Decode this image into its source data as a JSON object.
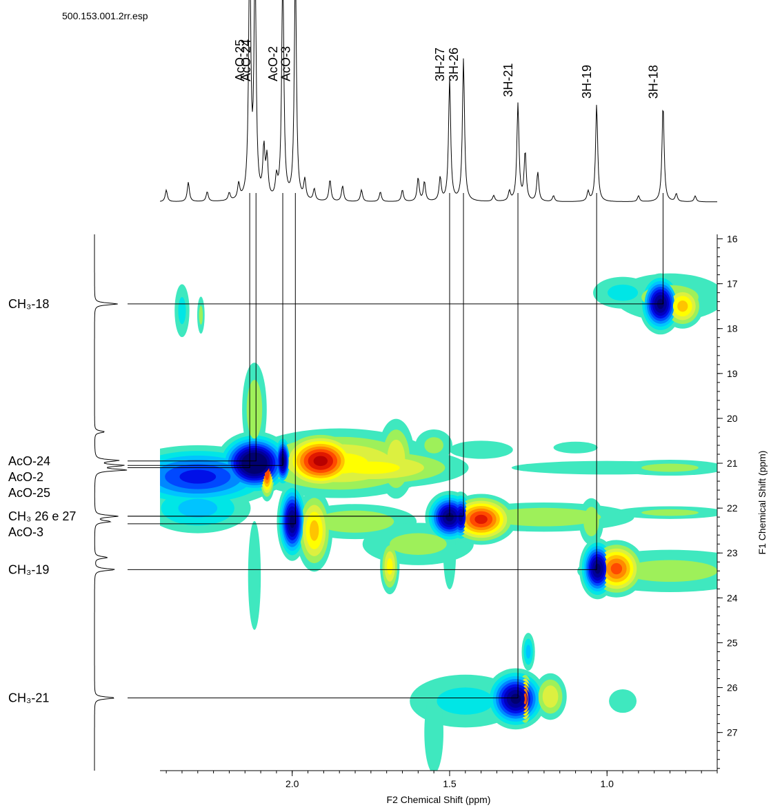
{
  "chart_data": {
    "type": "contour2d",
    "file_label": "500.153.001.2rr.esp",
    "x_label": "F2 Chemical Shift (ppm)",
    "y_label": "F1 Chemical Shift (ppm)",
    "xlim": [
      2.42,
      0.65
    ],
    "xticks": [
      {
        "value": 2.0,
        "label": "2.0"
      },
      1.5,
      {
        "value": 1.0,
        "label": "1.0"
      }
    ],
    "xminor_step": 0.05,
    "ylim": [
      15.9,
      27.85
    ],
    "yticks": [
      16,
      17,
      18,
      19,
      20,
      21,
      22,
      23,
      24,
      25,
      26,
      27
    ],
    "yminor_step": 0.2,
    "contour_levels": [
      0.15,
      0.25,
      0.35,
      0.45,
      0.55,
      0.65,
      0.75,
      0.85,
      0.95
    ],
    "contour_colors": {
      "positive": [
        "#3fe8bf",
        "#9ef05a",
        "#dcf040",
        "#ffff00",
        "#ffc400",
        "#ff8a00",
        "#ff4a00",
        "#e01800",
        "#b80000"
      ],
      "negative": [
        "#3fe8bf",
        "#00e6e6",
        "#00c4ff",
        "#0088ff",
        "#0048ff",
        "#0010e8",
        "#0000c0",
        "#000098",
        "#000070"
      ]
    },
    "cross_peaks": [
      {
        "f2": 2.3,
        "f1": 21.3,
        "w2": 0.15,
        "w1": 0.4,
        "intensity": -0.7
      },
      {
        "f2": 2.3,
        "f1": 22.0,
        "w2": 0.12,
        "w1": 0.4,
        "intensity": -0.4
      },
      {
        "f2": 2.12,
        "f1": 21.0,
        "w2": 0.06,
        "w1": 0.35,
        "intensity": -1.2
      },
      {
        "f2": 2.12,
        "f1": 19.8,
        "w2": 0.03,
        "w1": 0.8,
        "intensity": 0.35
      },
      {
        "f2": 2.12,
        "f1": 23.5,
        "w2": 0.02,
        "w1": 1.2,
        "intensity": -0.25
      },
      {
        "f2": 2.08,
        "f1": 21.2,
        "w2": 0.015,
        "w1": 0.35,
        "intensity": 0.85
      },
      {
        "f2": 2.03,
        "f1": 20.95,
        "w2": 0.015,
        "w1": 0.3,
        "intensity": -1.0
      },
      {
        "f2": 1.91,
        "f1": 20.95,
        "w2": 0.07,
        "w1": 0.35,
        "intensity": 1.0
      },
      {
        "f2": 1.85,
        "f1": 21.0,
        "w2": 0.2,
        "w1": 0.5,
        "intensity": 0.5
      },
      {
        "f2": 1.75,
        "f1": 21.1,
        "w2": 0.2,
        "w1": 0.3,
        "intensity": 0.5
      },
      {
        "f2": 1.67,
        "f1": 20.9,
        "w2": 0.04,
        "w1": 0.6,
        "intensity": 0.45
      },
      {
        "f2": 1.55,
        "f1": 20.6,
        "w2": 0.05,
        "w1": 0.3,
        "intensity": 0.3
      },
      {
        "f2": 1.4,
        "f1": 20.7,
        "w2": 0.1,
        "w1": 0.2,
        "intensity": -0.25
      },
      {
        "f2": 1.1,
        "f1": 20.65,
        "w2": 0.08,
        "w1": 0.15,
        "intensity": -0.22
      },
      {
        "f2": 1.0,
        "f1": 21.1,
        "w2": 0.3,
        "w1": 0.15,
        "intensity": 0.25
      },
      {
        "f2": 0.8,
        "f1": 21.1,
        "w2": 0.15,
        "w1": 0.15,
        "intensity": 0.3
      },
      {
        "f2": 2.0,
        "f1": 22.3,
        "w2": 0.025,
        "w1": 0.45,
        "intensity": -1.0
      },
      {
        "f2": 1.93,
        "f1": 22.5,
        "w2": 0.035,
        "w1": 0.55,
        "intensity": 0.6
      },
      {
        "f2": 1.8,
        "f1": 22.3,
        "w2": 0.15,
        "w1": 0.3,
        "intensity": 0.35
      },
      {
        "f2": 1.6,
        "f1": 22.8,
        "w2": 0.15,
        "w1": 0.4,
        "intensity": 0.3
      },
      {
        "f2": 1.69,
        "f1": 23.3,
        "w2": 0.02,
        "w1": 0.4,
        "intensity": 0.5
      },
      {
        "f2": 1.5,
        "f1": 22.2,
        "w2": 0.04,
        "w1": 0.3,
        "intensity": -1.0
      },
      {
        "f2": 1.465,
        "f1": 22.2,
        "w2": 0.02,
        "w1": 0.3,
        "intensity": -0.9
      },
      {
        "f2": 1.5,
        "f1": 23.0,
        "w2": 0.02,
        "w1": 0.8,
        "intensity": -0.25
      },
      {
        "f2": 1.4,
        "f1": 22.25,
        "w2": 0.06,
        "w1": 0.3,
        "intensity": 0.9
      },
      {
        "f2": 1.2,
        "f1": 22.2,
        "w2": 0.22,
        "w1": 0.25,
        "intensity": 0.35
      },
      {
        "f2": 1.05,
        "f1": 22.3,
        "w2": 0.03,
        "w1": 0.4,
        "intensity": 0.35
      },
      {
        "f2": 0.8,
        "f1": 22.1,
        "w2": 0.15,
        "w1": 0.12,
        "intensity": 0.3
      },
      {
        "f2": 1.03,
        "f1": 23.35,
        "w2": 0.03,
        "w1": 0.35,
        "intensity": -1.0
      },
      {
        "f2": 0.97,
        "f1": 23.35,
        "w2": 0.05,
        "w1": 0.35,
        "intensity": 0.8
      },
      {
        "f2": 0.8,
        "f1": 23.4,
        "w2": 0.25,
        "w1": 0.4,
        "intensity": 0.3
      },
      {
        "f2": 1.45,
        "f1": 26.3,
        "w2": 0.15,
        "w1": 0.5,
        "intensity": -0.3
      },
      {
        "f2": 1.55,
        "f1": 27.0,
        "w2": 0.03,
        "w1": 0.9,
        "intensity": -0.25
      },
      {
        "f2": 1.29,
        "f1": 26.25,
        "w2": 0.05,
        "w1": 0.35,
        "intensity": -1.0
      },
      {
        "f2": 1.26,
        "f1": 26.25,
        "w2": 0.015,
        "w1": 0.35,
        "intensity": 0.8
      },
      {
        "f2": 1.18,
        "f1": 26.2,
        "w2": 0.035,
        "w1": 0.35,
        "intensity": 0.45
      },
      {
        "f2": 1.25,
        "f1": 25.2,
        "w2": 0.015,
        "w1": 0.3,
        "intensity": -0.4
      },
      {
        "f2": 0.95,
        "f1": 26.3,
        "w2": 0.05,
        "w1": 0.3,
        "intensity": 0.22
      },
      {
        "f2": 2.35,
        "f1": 17.6,
        "w2": 0.02,
        "w1": 0.5,
        "intensity": -0.3
      },
      {
        "f2": 2.29,
        "f1": 17.7,
        "w2": 0.01,
        "w1": 0.35,
        "intensity": 0.3
      },
      {
        "f2": 0.95,
        "f1": 17.2,
        "w2": 0.08,
        "w1": 0.3,
        "intensity": -0.3
      },
      {
        "f2": 0.83,
        "f1": 17.45,
        "w2": 0.035,
        "w1": 0.35,
        "intensity": -1.0
      },
      {
        "f2": 0.76,
        "f1": 17.5,
        "w2": 0.04,
        "w1": 0.3,
        "intensity": 0.6
      },
      {
        "f2": 0.8,
        "f1": 17.3,
        "w2": 0.15,
        "w1": 0.45,
        "intensity": 0.3
      }
    ],
    "f2_spectrum": [
      {
        "f2": 2.135,
        "intensity": 1.3
      },
      {
        "f2": 2.118,
        "intensity": 1.2
      },
      {
        "f2": 2.09,
        "intensity": 0.25
      },
      {
        "f2": 2.08,
        "intensity": 0.2
      },
      {
        "f2": 2.03,
        "intensity": 1.2
      },
      {
        "f2": 1.99,
        "intensity": 1.2
      },
      {
        "f2": 1.5,
        "intensity": 0.63
      },
      {
        "f2": 1.456,
        "intensity": 0.73
      },
      {
        "f2": 1.283,
        "intensity": 0.5
      },
      {
        "f2": 1.26,
        "intensity": 0.25
      },
      {
        "f2": 1.22,
        "intensity": 0.15
      },
      {
        "f2": 1.033,
        "intensity": 0.5
      },
      {
        "f2": 0.822,
        "intensity": 0.5
      },
      {
        "f2": 2.4,
        "intensity": 0.06
      },
      {
        "f2": 2.33,
        "intensity": 0.1
      },
      {
        "f2": 2.27,
        "intensity": 0.05
      },
      {
        "f2": 2.2,
        "intensity": 0.04
      },
      {
        "f2": 2.17,
        "intensity": 0.08
      },
      {
        "f2": 2.05,
        "intensity": 0.1
      },
      {
        "f2": 1.96,
        "intensity": 0.1
      },
      {
        "f2": 1.93,
        "intensity": 0.06
      },
      {
        "f2": 1.88,
        "intensity": 0.11
      },
      {
        "f2": 1.84,
        "intensity": 0.08
      },
      {
        "f2": 1.78,
        "intensity": 0.06
      },
      {
        "f2": 1.72,
        "intensity": 0.05
      },
      {
        "f2": 1.65,
        "intensity": 0.06
      },
      {
        "f2": 1.6,
        "intensity": 0.12
      },
      {
        "f2": 1.58,
        "intensity": 0.1
      },
      {
        "f2": 1.53,
        "intensity": 0.12
      },
      {
        "f2": 1.36,
        "intensity": 0.03
      },
      {
        "f2": 1.31,
        "intensity": 0.05
      },
      {
        "f2": 1.17,
        "intensity": 0.03
      },
      {
        "f2": 1.06,
        "intensity": 0.05
      },
      {
        "f2": 0.9,
        "intensity": 0.03
      },
      {
        "f2": 0.78,
        "intensity": 0.04
      },
      {
        "f2": 0.72,
        "intensity": 0.03
      }
    ],
    "f1_spectrum": [
      {
        "f1": 17.45,
        "intensity": 0.75
      },
      {
        "f1": 20.3,
        "intensity": 0.33
      },
      {
        "f1": 20.94,
        "intensity": 0.75
      },
      {
        "f1": 21.05,
        "intensity": 0.9
      },
      {
        "f1": 21.15,
        "intensity": 1.0
      },
      {
        "f1": 22.18,
        "intensity": 0.75
      },
      {
        "f1": 22.3,
        "intensity": 0.5
      },
      {
        "f1": 23.1,
        "intensity": 0.42
      },
      {
        "f1": 23.37,
        "intensity": 0.67
      },
      {
        "f1": 26.23,
        "intensity": 0.67
      }
    ],
    "f2_labels": [
      {
        "label": "AcO-25",
        "f2": 2.135,
        "f1": 21.1
      },
      {
        "label": "AcO-24",
        "f2": 2.115,
        "f1": 20.95
      },
      {
        "label": "AcO-2",
        "f2": 2.03,
        "f1": 21.05
      },
      {
        "label": "AcO-3",
        "f2": 1.99,
        "f1": 22.35
      },
      {
        "label": "3H-27",
        "f2": 1.5,
        "f1": 22.18
      },
      {
        "label": "3H-26",
        "f2": 1.456,
        "f1": 22.18
      },
      {
        "label": "3H-21",
        "f2": 1.283,
        "f1": 26.23
      },
      {
        "label": "3H-19",
        "f2": 1.033,
        "f1": 23.37
      },
      {
        "label": "3H-18",
        "f2": 0.822,
        "f1": 17.45
      }
    ],
    "f1_labels": [
      {
        "label": "CH₃-18",
        "f1": 17.45
      },
      {
        "label": "AcO-24",
        "f1": 20.95
      },
      {
        "label": "AcO-2",
        "f1": 21.05
      },
      {
        "label": "AcO-25",
        "f1": 21.1
      },
      {
        "label": "CH₃ 26 e 27",
        "f1": 22.18
      },
      {
        "label": "AcO-3",
        "f1": 22.35
      },
      {
        "label": "CH₃-19",
        "f1": 23.37
      },
      {
        "label": "CH₃-21",
        "f1": 26.23
      }
    ]
  }
}
